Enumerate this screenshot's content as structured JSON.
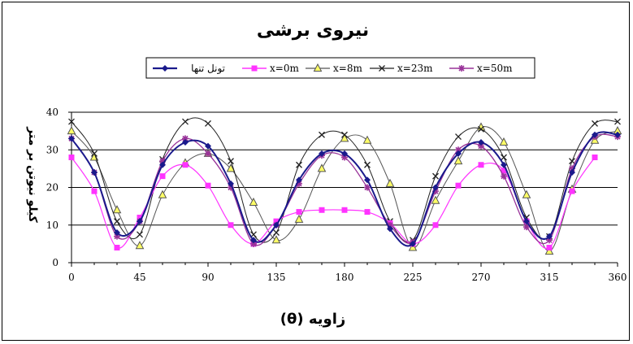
{
  "chart_data": {
    "type": "line",
    "title": "نیروی برشی",
    "xlabel": "زاویه (θ)",
    "ylabel": "کیلو نیوتن بر متر",
    "xlim": [
      0,
      360
    ],
    "ylim": [
      0,
      40
    ],
    "x_ticks": [
      0,
      45,
      90,
      135,
      180,
      225,
      270,
      315,
      360
    ],
    "y_ticks": [
      0,
      10,
      20,
      30,
      40
    ],
    "grid": "horizontal",
    "legend_position": "top",
    "series": [
      {
        "name": "تونل تنها",
        "color": "#1a1a8c",
        "marker": "diamond",
        "x": [
          0,
          15,
          30,
          45,
          60,
          75,
          90,
          105,
          120,
          135,
          150,
          165,
          180,
          195,
          210,
          225,
          240,
          255,
          270,
          285,
          300,
          315,
          330,
          345,
          360
        ],
        "y": [
          33,
          24,
          8,
          11,
          26,
          32,
          31,
          21,
          6,
          10,
          22,
          29,
          29,
          22,
          9,
          5,
          20,
          29,
          32,
          26,
          11,
          7,
          24,
          34,
          34
        ]
      },
      {
        "name": "x=0m",
        "color": "#ff33ff",
        "marker": "square",
        "x": [
          0,
          15,
          30,
          45,
          60,
          75,
          90,
          105,
          120,
          135,
          150,
          165,
          180,
          195,
          210,
          225,
          240,
          255,
          270,
          285,
          300,
          315,
          330,
          345
        ],
        "y": [
          28,
          19,
          4,
          12,
          23,
          26,
          20.5,
          10,
          5,
          11,
          13.5,
          14,
          14,
          13.5,
          10.5,
          5,
          10,
          20.5,
          26,
          24.5,
          11,
          4,
          19,
          28
        ]
      },
      {
        "name": "x=8m",
        "color": "#555555",
        "marker": "triangle",
        "x": [
          0,
          15,
          30,
          45,
          60,
          75,
          90,
          105,
          120,
          135,
          150,
          165,
          180,
          195,
          210,
          225,
          240,
          255,
          270,
          285,
          300,
          315,
          330,
          345,
          360
        ],
        "y": [
          35,
          28,
          14,
          4.5,
          18,
          26.5,
          29,
          25,
          16,
          6,
          11.5,
          25,
          33,
          32.5,
          21,
          4,
          16.5,
          27,
          36,
          32,
          18,
          3,
          19.5,
          32.5,
          35
        ]
      },
      {
        "name": "x=23m",
        "color": "#222222",
        "marker": "x",
        "x": [
          0,
          15,
          30,
          45,
          60,
          75,
          90,
          105,
          120,
          135,
          150,
          165,
          180,
          195,
          210,
          225,
          240,
          255,
          270,
          285,
          300,
          315,
          330,
          345,
          360
        ],
        "y": [
          37.5,
          29,
          11,
          7.5,
          27.5,
          37.5,
          37,
          27,
          7.5,
          8,
          26,
          34,
          34,
          26,
          11,
          6,
          23,
          33.5,
          35.5,
          28,
          12,
          7,
          27,
          37,
          37.5
        ]
      },
      {
        "name": "x=50m",
        "color": "#993399",
        "marker": "star",
        "x": [
          0,
          15,
          30,
          45,
          60,
          75,
          90,
          105,
          120,
          135,
          150,
          165,
          180,
          195,
          210,
          225,
          240,
          255,
          270,
          285,
          300,
          315,
          330,
          345,
          360
        ],
        "y": [
          33,
          24,
          7,
          11,
          27,
          33,
          29,
          20,
          5,
          10,
          21,
          28.5,
          28,
          20,
          10,
          5.5,
          19,
          30,
          31,
          23,
          9.5,
          6,
          25,
          33.5,
          33.5
        ]
      }
    ]
  }
}
